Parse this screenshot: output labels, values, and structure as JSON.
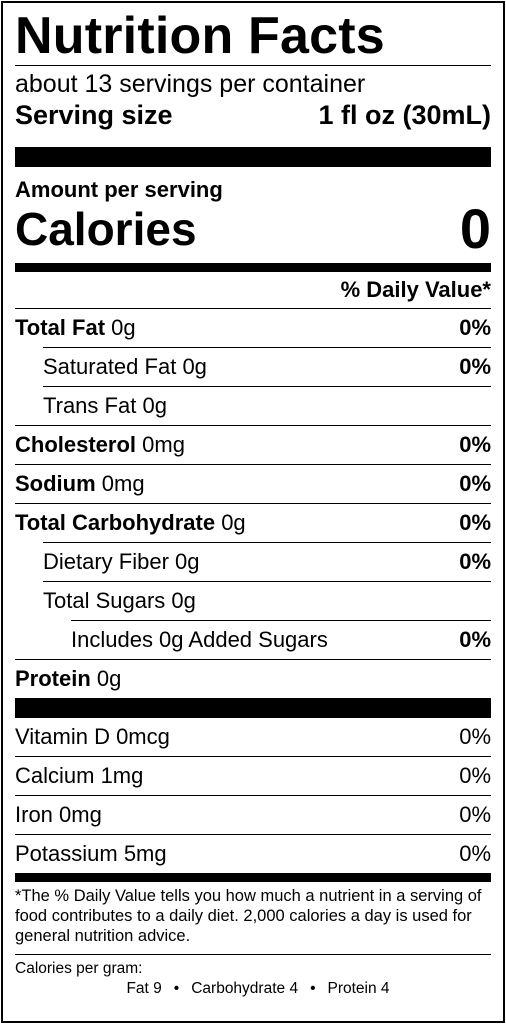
{
  "title": "Nutrition Facts",
  "servings_per_container": "about 13 servings per container",
  "serving_size": {
    "label": "Serving size",
    "value": "1 fl oz (30mL)"
  },
  "amount_per_serving": "Amount per serving",
  "calories": {
    "label": "Calories",
    "value": "0"
  },
  "daily_value_header": "% Daily Value*",
  "nutrients": [
    {
      "name": "Total Fat",
      "amount": "0g",
      "dv": "0%"
    },
    {
      "name": "Saturated Fat",
      "amount": "0g",
      "dv": "0%"
    },
    {
      "name": "Trans Fat",
      "amount": "0g",
      "dv": ""
    },
    {
      "name": "Cholesterol",
      "amount": "0mg",
      "dv": "0%"
    },
    {
      "name": "Sodium",
      "amount": "0mg",
      "dv": "0%"
    },
    {
      "name": "Total Carbohydrate",
      "amount": "0g",
      "dv": "0%"
    },
    {
      "name": "Dietary Fiber",
      "amount": "0g",
      "dv": "0%"
    },
    {
      "name": "Total Sugars",
      "amount": "0g",
      "dv": ""
    },
    {
      "name": "Includes 0g Added Sugars",
      "amount": "",
      "dv": "0%"
    },
    {
      "name": "Protein",
      "amount": "0g",
      "dv": ""
    }
  ],
  "vitamins": [
    {
      "name": "Vitamin D 0mcg",
      "dv": "0%"
    },
    {
      "name": "Calcium 1mg",
      "dv": "0%"
    },
    {
      "name": "Iron 0mg",
      "dv": "0%"
    },
    {
      "name": "Potassium 5mg",
      "dv": "0%"
    }
  ],
  "footnote": "*The % Daily Value tells you how much a nutrient in a serving of food contributes to a daily diet. 2,000 calories a day is used for general nutrition advice.",
  "calories_per_gram": {
    "label": "Calories per gram:",
    "fat": "Fat 9",
    "carbohydrate": "Carbohydrate 4",
    "protein": "Protein 4",
    "separator": "•"
  }
}
